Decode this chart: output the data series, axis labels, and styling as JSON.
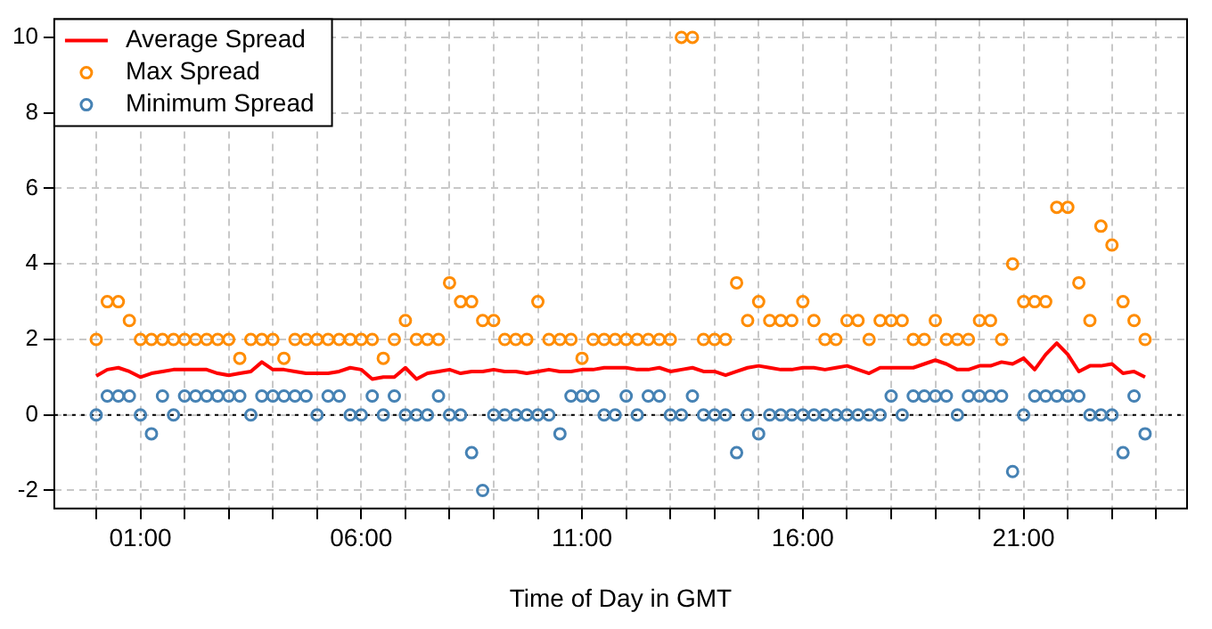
{
  "chart_data": {
    "type": "scatter",
    "xlabel": "Time of Day in GMT",
    "x": [
      0,
      0.25,
      0.5,
      0.75,
      1,
      1.25,
      1.5,
      1.75,
      2,
      2.25,
      2.5,
      2.75,
      3,
      3.25,
      3.5,
      3.75,
      4,
      4.25,
      4.5,
      4.75,
      5,
      5.25,
      5.5,
      5.75,
      6,
      6.25,
      6.5,
      6.75,
      7,
      7.25,
      7.5,
      7.75,
      8,
      8.25,
      8.5,
      8.75,
      9,
      9.25,
      9.5,
      9.75,
      10,
      10.25,
      10.5,
      10.75,
      11,
      11.25,
      11.5,
      11.75,
      12,
      12.25,
      12.5,
      12.75,
      13,
      13.25,
      13.5,
      13.75,
      14,
      14.25,
      14.5,
      14.75,
      15,
      15.25,
      15.5,
      15.75,
      16,
      16.25,
      16.5,
      16.75,
      17,
      17.25,
      17.5,
      17.75,
      18,
      18.25,
      18.5,
      18.75,
      19,
      19.25,
      19.5,
      19.75,
      20,
      20.25,
      20.5,
      20.75,
      21,
      21.25,
      21.5,
      21.75,
      22,
      22.25,
      22.5,
      22.75,
      23,
      23.25,
      23.5,
      23.75
    ],
    "series": [
      {
        "name": "Average Spread",
        "type": "line",
        "marker": "none",
        "color": "#ff0000",
        "values": [
          1.03,
          1.2,
          1.25,
          1.15,
          1.0,
          1.1,
          1.15,
          1.2,
          1.2,
          1.2,
          1.2,
          1.1,
          1.05,
          1.1,
          1.15,
          1.4,
          1.2,
          1.2,
          1.15,
          1.1,
          1.1,
          1.1,
          1.15,
          1.25,
          1.2,
          0.95,
          1.0,
          1.0,
          1.25,
          0.95,
          1.1,
          1.15,
          1.2,
          1.1,
          1.15,
          1.15,
          1.2,
          1.15,
          1.15,
          1.1,
          1.15,
          1.2,
          1.15,
          1.15,
          1.2,
          1.2,
          1.25,
          1.25,
          1.25,
          1.2,
          1.2,
          1.25,
          1.15,
          1.2,
          1.25,
          1.15,
          1.15,
          1.05,
          1.15,
          1.25,
          1.3,
          1.25,
          1.2,
          1.2,
          1.25,
          1.25,
          1.2,
          1.25,
          1.3,
          1.2,
          1.1,
          1.25,
          1.25,
          1.25,
          1.25,
          1.35,
          1.45,
          1.35,
          1.2,
          1.2,
          1.3,
          1.3,
          1.4,
          1.35,
          1.5,
          1.2,
          1.6,
          1.9,
          1.6,
          1.15,
          1.3,
          1.3,
          1.35,
          1.1,
          1.15,
          1.0
        ]
      },
      {
        "name": "Max Spread",
        "color": "#ff8c00",
        "values": [
          2,
          3,
          3,
          2.5,
          2,
          2,
          2,
          2,
          2,
          2,
          2,
          2,
          2,
          1.5,
          2,
          2,
          2,
          1.5,
          2,
          2,
          2,
          2,
          2,
          2,
          2,
          2,
          1.5,
          2,
          2.5,
          2,
          2,
          2,
          3.5,
          3,
          3,
          2.5,
          2.5,
          2,
          2,
          2,
          3,
          2,
          2,
          2,
          1.5,
          2,
          2,
          2,
          2,
          2,
          2,
          2,
          2,
          10,
          10,
          2,
          2,
          2,
          3.5,
          2.5,
          3,
          2.5,
          2.5,
          2.5,
          3,
          2.5,
          2,
          2,
          2.5,
          2.5,
          2,
          2.5,
          2.5,
          2.5,
          2,
          2,
          2.5,
          2,
          2,
          2,
          2.5,
          2.5,
          2,
          4,
          3,
          3,
          3,
          5.5,
          5.5,
          3.5,
          2.5,
          5,
          4.5,
          3,
          2.5,
          2
        ]
      },
      {
        "name": "Minimum Spread",
        "color": "#4682b4",
        "values": [
          0,
          0.5,
          0.5,
          0.5,
          0,
          -0.5,
          0.5,
          0,
          0.5,
          0.5,
          0.5,
          0.5,
          0.5,
          0.5,
          0,
          0.5,
          0.5,
          0.5,
          0.5,
          0.5,
          0,
          0.5,
          0.5,
          0,
          0,
          0.5,
          0,
          0.5,
          0,
          0,
          0,
          0.5,
          0,
          0,
          -1,
          -2,
          0,
          0,
          0,
          0,
          0,
          0,
          -0.5,
          0.5,
          0.5,
          0.5,
          0,
          0,
          0.5,
          0,
          0.5,
          0.5,
          0,
          0,
          0.5,
          0,
          0,
          0,
          -1,
          0,
          -0.5,
          0,
          0,
          0,
          0,
          0,
          0,
          0,
          0,
          0,
          0,
          0,
          0.5,
          0,
          0.5,
          0.5,
          0.5,
          0.5,
          0,
          0.5,
          0.5,
          0.5,
          0.5,
          -1.5,
          0,
          0.5,
          0.5,
          0.5,
          0.5,
          0.5,
          0,
          0,
          0,
          -1,
          0.5,
          -0.5
        ]
      }
    ],
    "xlim": [
      -0.95,
      24.7
    ],
    "xticks": [
      {
        "value": 0,
        "label": null
      },
      {
        "value": 1,
        "label": "01:00"
      },
      {
        "value": 2,
        "label": null
      },
      {
        "value": 3,
        "label": null
      },
      {
        "value": 4,
        "label": null
      },
      {
        "value": 5,
        "label": null
      },
      {
        "value": 6,
        "label": "06:00"
      },
      {
        "value": 7,
        "label": null
      },
      {
        "value": 8,
        "label": null
      },
      {
        "value": 9,
        "label": null
      },
      {
        "value": 10,
        "label": null
      },
      {
        "value": 11,
        "label": "11:00"
      },
      {
        "value": 12,
        "label": null
      },
      {
        "value": 13,
        "label": null
      },
      {
        "value": 14,
        "label": null
      },
      {
        "value": 15,
        "label": null
      },
      {
        "value": 16,
        "label": "16:00"
      },
      {
        "value": 17,
        "label": null
      },
      {
        "value": 18,
        "label": null
      },
      {
        "value": 19,
        "label": null
      },
      {
        "value": 20,
        "label": null
      },
      {
        "value": 21,
        "label": "21:00"
      },
      {
        "value": 22,
        "label": null
      },
      {
        "value": 23,
        "label": null
      },
      {
        "value": 24,
        "label": null
      }
    ],
    "ylim": [
      -2.48,
      10.48
    ],
    "yticks": [
      -2,
      0,
      2,
      4,
      6,
      8,
      10
    ],
    "ref_lines": [
      {
        "axis": "y",
        "value": 0,
        "color": "#000000",
        "line_style": "dotted"
      }
    ],
    "grid": true,
    "legend": "top left",
    "marker": "circle"
  }
}
